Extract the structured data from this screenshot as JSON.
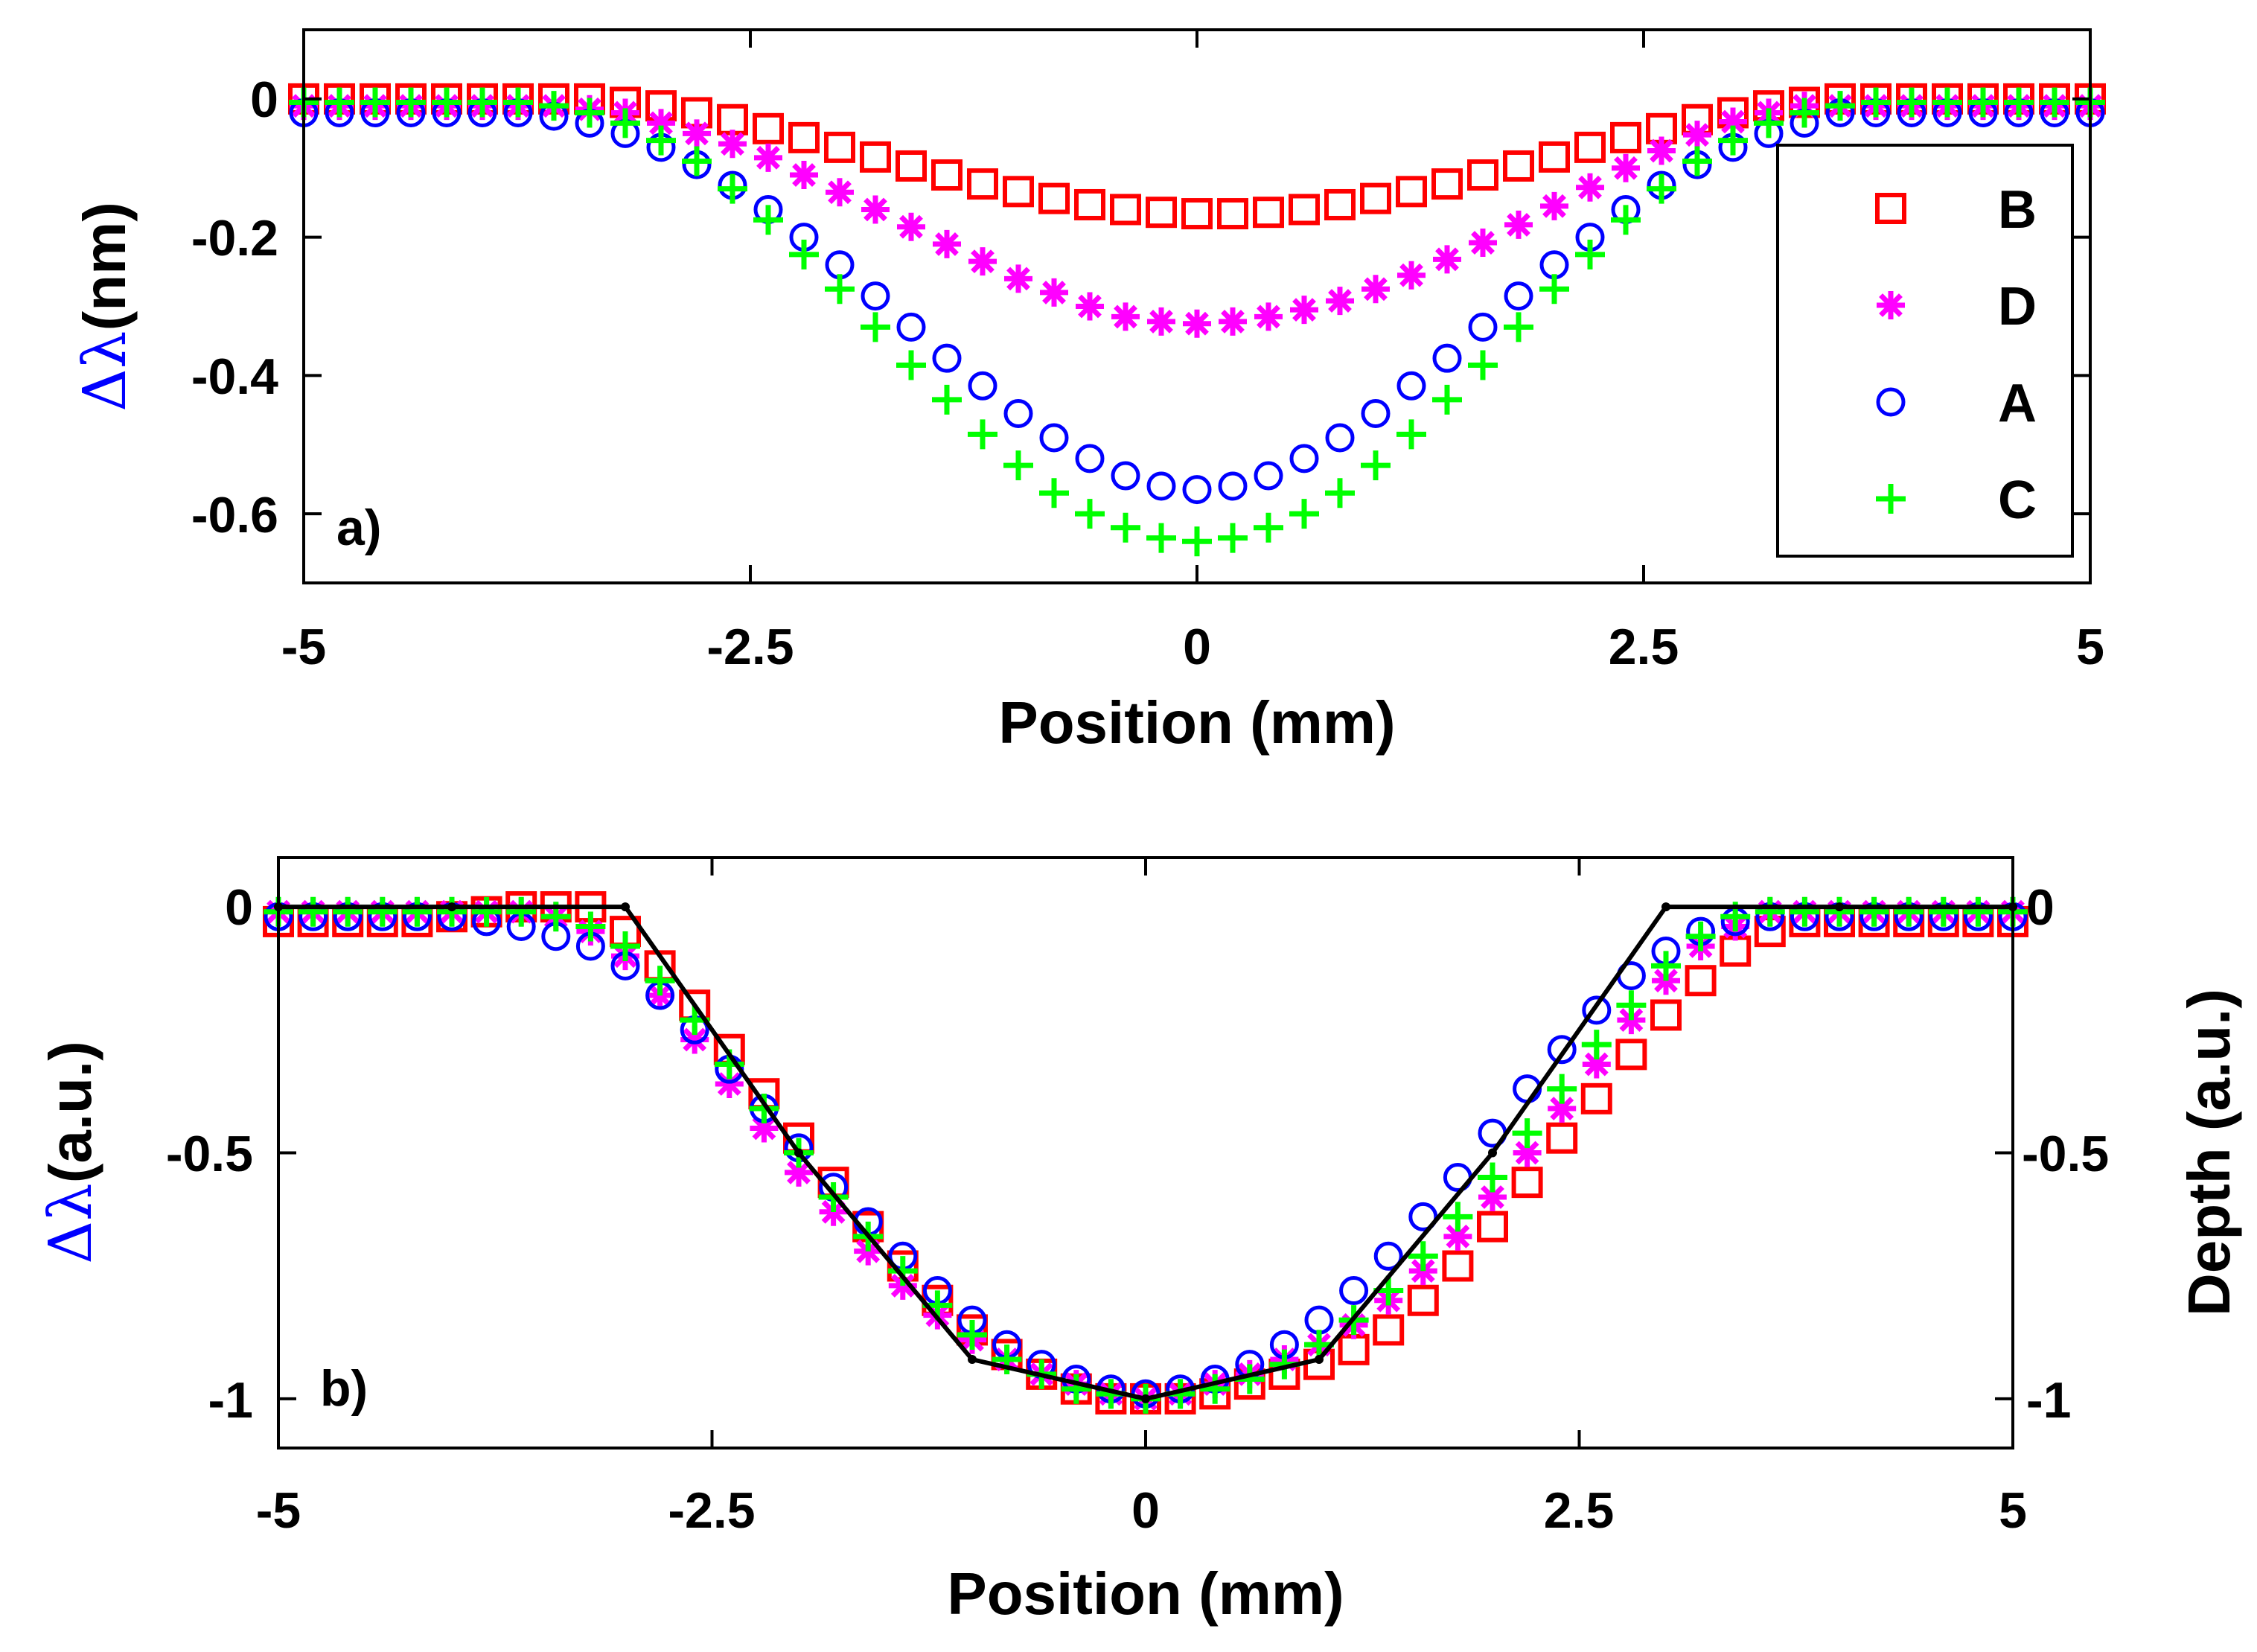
{
  "chart_data": [
    {
      "id": "a",
      "type": "scatter",
      "panel_label": "a)",
      "xlabel": "Position (mm)",
      "ylabel_symbol": "Δλ",
      "ylabel_unit": "(nm)",
      "xlim": [
        -5,
        5
      ],
      "ylim": [
        -0.7,
        0.1
      ],
      "xticks": [
        -5,
        -2.5,
        0,
        2.5,
        5
      ],
      "xtick_labels": [
        "-5",
        "-2.5",
        "0",
        "2.5",
        "5"
      ],
      "yticks": [
        0,
        -0.2,
        -0.4,
        -0.6
      ],
      "ytick_labels": [
        "0",
        "-0.2",
        "-0.4",
        "-0.6"
      ],
      "legend_position": "right",
      "x": [
        -5.0,
        -4.8,
        -4.6,
        -4.4,
        -4.2,
        -4.0,
        -3.8,
        -3.6,
        -3.4,
        -3.2,
        -3.0,
        -2.8,
        -2.6,
        -2.4,
        -2.2,
        -2.0,
        -1.8,
        -1.6,
        -1.4,
        -1.2,
        -1.0,
        -0.8,
        -0.6,
        -0.4,
        -0.2,
        0.0,
        0.2,
        0.4,
        0.6,
        0.8,
        1.0,
        1.2,
        1.4,
        1.6,
        1.8,
        2.0,
        2.2,
        2.4,
        2.6,
        2.8,
        3.0,
        3.2,
        3.4,
        3.6,
        3.8,
        4.0,
        4.2,
        4.4,
        4.6,
        4.8,
        5.0
      ],
      "series": [
        {
          "name": "B",
          "marker": "square",
          "color": "#ff0000",
          "values": [
            0.0,
            0.0,
            0.0,
            0.0,
            0.0,
            0.0,
            0.0,
            0.0,
            0.0,
            -0.005,
            -0.01,
            -0.02,
            -0.03,
            -0.043,
            -0.056,
            -0.07,
            -0.084,
            -0.097,
            -0.11,
            -0.123,
            -0.134,
            -0.144,
            -0.153,
            -0.16,
            -0.164,
            -0.166,
            -0.166,
            -0.164,
            -0.16,
            -0.153,
            -0.144,
            -0.134,
            -0.123,
            -0.11,
            -0.097,
            -0.084,
            -0.07,
            -0.056,
            -0.043,
            -0.03,
            -0.02,
            -0.01,
            -0.005,
            0.0,
            0.0,
            0.0,
            0.0,
            0.0,
            0.0,
            0.0,
            0.0
          ]
        },
        {
          "name": "D",
          "marker": "asterisk",
          "color": "#ff00ff",
          "values": [
            -0.01,
            -0.01,
            -0.01,
            -0.01,
            -0.01,
            -0.01,
            -0.01,
            -0.01,
            -0.015,
            -0.02,
            -0.035,
            -0.05,
            -0.065,
            -0.085,
            -0.11,
            -0.135,
            -0.16,
            -0.185,
            -0.21,
            -0.235,
            -0.26,
            -0.28,
            -0.3,
            -0.315,
            -0.322,
            -0.325,
            -0.322,
            -0.315,
            -0.305,
            -0.292,
            -0.275,
            -0.255,
            -0.232,
            -0.208,
            -0.182,
            -0.155,
            -0.128,
            -0.1,
            -0.075,
            -0.052,
            -0.033,
            -0.02,
            -0.01,
            -0.01,
            -0.01,
            -0.01,
            -0.01,
            -0.01,
            -0.01,
            -0.01,
            -0.01
          ]
        },
        {
          "name": "A",
          "marker": "circle",
          "color": "#0000ff",
          "values": [
            -0.02,
            -0.02,
            -0.02,
            -0.02,
            -0.02,
            -0.02,
            -0.02,
            -0.025,
            -0.035,
            -0.05,
            -0.07,
            -0.095,
            -0.125,
            -0.16,
            -0.2,
            -0.24,
            -0.285,
            -0.33,
            -0.375,
            -0.415,
            -0.455,
            -0.49,
            -0.52,
            -0.545,
            -0.56,
            -0.565,
            -0.56,
            -0.545,
            -0.52,
            -0.49,
            -0.455,
            -0.415,
            -0.375,
            -0.33,
            -0.285,
            -0.24,
            -0.2,
            -0.16,
            -0.125,
            -0.095,
            -0.07,
            -0.05,
            -0.035,
            -0.02,
            -0.02,
            -0.02,
            -0.02,
            -0.02,
            -0.02,
            -0.02,
            -0.02
          ]
        },
        {
          "name": "C",
          "marker": "plus",
          "color": "#00ff00",
          "values": [
            -0.005,
            -0.005,
            -0.005,
            -0.005,
            -0.005,
            -0.005,
            -0.005,
            -0.01,
            -0.02,
            -0.035,
            -0.06,
            -0.09,
            -0.13,
            -0.175,
            -0.225,
            -0.275,
            -0.33,
            -0.385,
            -0.435,
            -0.485,
            -0.53,
            -0.57,
            -0.6,
            -0.62,
            -0.635,
            -0.64,
            -0.635,
            -0.62,
            -0.6,
            -0.57,
            -0.53,
            -0.485,
            -0.435,
            -0.385,
            -0.33,
            -0.275,
            -0.225,
            -0.175,
            -0.13,
            -0.09,
            -0.06,
            -0.035,
            -0.02,
            -0.01,
            -0.005,
            -0.005,
            -0.005,
            -0.005,
            -0.005,
            -0.005,
            -0.005
          ]
        }
      ]
    },
    {
      "id": "b",
      "type": "scatter",
      "panel_label": "b)",
      "xlabel": "Position (mm)",
      "ylabel_symbol": "Δλ",
      "ylabel_unit": "(a.u.)",
      "ylabel_right": "Depth (a.u.)",
      "xlim": [
        -5,
        5
      ],
      "ylim": [
        -1.1,
        0.1
      ],
      "xticks": [
        -5,
        -2.5,
        0,
        2.5,
        5
      ],
      "xtick_labels": [
        "-5",
        "-2.5",
        "0",
        "2.5",
        "5"
      ],
      "yticks": [
        0,
        -0.5,
        -1
      ],
      "ytick_labels": [
        "0",
        "-0.5",
        "-1"
      ],
      "ytick_labels_right": [
        "0",
        "-0.5",
        "-1"
      ],
      "x": [
        -5.0,
        -4.8,
        -4.6,
        -4.4,
        -4.2,
        -4.0,
        -3.8,
        -3.6,
        -3.4,
        -3.2,
        -3.0,
        -2.8,
        -2.6,
        -2.4,
        -2.2,
        -2.0,
        -1.8,
        -1.6,
        -1.4,
        -1.2,
        -1.0,
        -0.8,
        -0.6,
        -0.4,
        -0.2,
        0.0,
        0.2,
        0.4,
        0.6,
        0.8,
        1.0,
        1.2,
        1.4,
        1.6,
        1.8,
        2.0,
        2.2,
        2.4,
        2.6,
        2.8,
        3.0,
        3.2,
        3.4,
        3.6,
        3.8,
        4.0,
        4.2,
        4.4,
        4.6,
        4.8,
        5.0
      ],
      "series": [
        {
          "name": "B",
          "marker": "square",
          "color": "#ff0000",
          "values": [
            -0.03,
            -0.03,
            -0.03,
            -0.03,
            -0.03,
            -0.02,
            -0.01,
            0.0,
            0.0,
            0.0,
            -0.05,
            -0.12,
            -0.2,
            -0.29,
            -0.38,
            -0.47,
            -0.56,
            -0.65,
            -0.73,
            -0.8,
            -0.86,
            -0.91,
            -0.95,
            -0.98,
            -1.0,
            -1.0,
            -1.0,
            -0.99,
            -0.97,
            -0.95,
            -0.93,
            -0.9,
            -0.86,
            -0.8,
            -0.73,
            -0.65,
            -0.56,
            -0.47,
            -0.39,
            -0.3,
            -0.22,
            -0.15,
            -0.09,
            -0.05,
            -0.03,
            -0.03,
            -0.03,
            -0.03,
            -0.03,
            -0.03,
            -0.03
          ]
        },
        {
          "name": "D",
          "marker": "asterisk",
          "color": "#ff00ff",
          "values": [
            -0.01,
            -0.01,
            -0.01,
            -0.01,
            -0.01,
            -0.01,
            -0.01,
            -0.01,
            -0.02,
            -0.05,
            -0.1,
            -0.18,
            -0.27,
            -0.36,
            -0.45,
            -0.54,
            -0.62,
            -0.7,
            -0.77,
            -0.83,
            -0.88,
            -0.92,
            -0.95,
            -0.97,
            -0.99,
            -1.0,
            -0.99,
            -0.97,
            -0.95,
            -0.92,
            -0.89,
            -0.85,
            -0.8,
            -0.74,
            -0.67,
            -0.59,
            -0.5,
            -0.41,
            -0.32,
            -0.23,
            -0.15,
            -0.08,
            -0.04,
            -0.01,
            -0.01,
            -0.01,
            -0.01,
            -0.01,
            -0.01,
            -0.01,
            -0.01
          ]
        },
        {
          "name": "A",
          "marker": "circle",
          "color": "#0000ff",
          "values": [
            -0.02,
            -0.02,
            -0.02,
            -0.02,
            -0.02,
            -0.02,
            -0.03,
            -0.04,
            -0.06,
            -0.08,
            -0.12,
            -0.18,
            -0.25,
            -0.33,
            -0.41,
            -0.49,
            -0.57,
            -0.64,
            -0.71,
            -0.78,
            -0.84,
            -0.89,
            -0.93,
            -0.96,
            -0.98,
            -0.99,
            -0.98,
            -0.96,
            -0.93,
            -0.89,
            -0.84,
            -0.78,
            -0.71,
            -0.63,
            -0.55,
            -0.46,
            -0.37,
            -0.29,
            -0.21,
            -0.14,
            -0.09,
            -0.05,
            -0.03,
            -0.02,
            -0.02,
            -0.02,
            -0.02,
            -0.02,
            -0.02,
            -0.02,
            -0.02
          ]
        },
        {
          "name": "C",
          "marker": "plus",
          "color": "#00ff00",
          "values": [
            -0.01,
            -0.01,
            -0.01,
            -0.01,
            -0.01,
            -0.01,
            -0.01,
            -0.01,
            -0.02,
            -0.04,
            -0.08,
            -0.15,
            -0.23,
            -0.32,
            -0.41,
            -0.5,
            -0.59,
            -0.67,
            -0.74,
            -0.81,
            -0.87,
            -0.92,
            -0.95,
            -0.98,
            -0.99,
            -1.0,
            -0.99,
            -0.98,
            -0.96,
            -0.93,
            -0.89,
            -0.84,
            -0.78,
            -0.71,
            -0.63,
            -0.55,
            -0.46,
            -0.37,
            -0.28,
            -0.2,
            -0.12,
            -0.06,
            -0.02,
            -0.01,
            -0.01,
            -0.01,
            -0.01,
            -0.01,
            -0.01,
            -0.01,
            -0.01
          ]
        }
      ],
      "depth_profile": {
        "name": "Depth",
        "color": "#000000",
        "x": [
          -5.0,
          -4.0,
          -3.0,
          -2.0,
          -1.0,
          0.0,
          1.0,
          2.0,
          3.0,
          4.0,
          5.0
        ],
        "values": [
          0.0,
          0.0,
          0.0,
          -0.5,
          -0.92,
          -1.0,
          -0.92,
          -0.5,
          0.0,
          0.0,
          0.0
        ]
      }
    }
  ]
}
